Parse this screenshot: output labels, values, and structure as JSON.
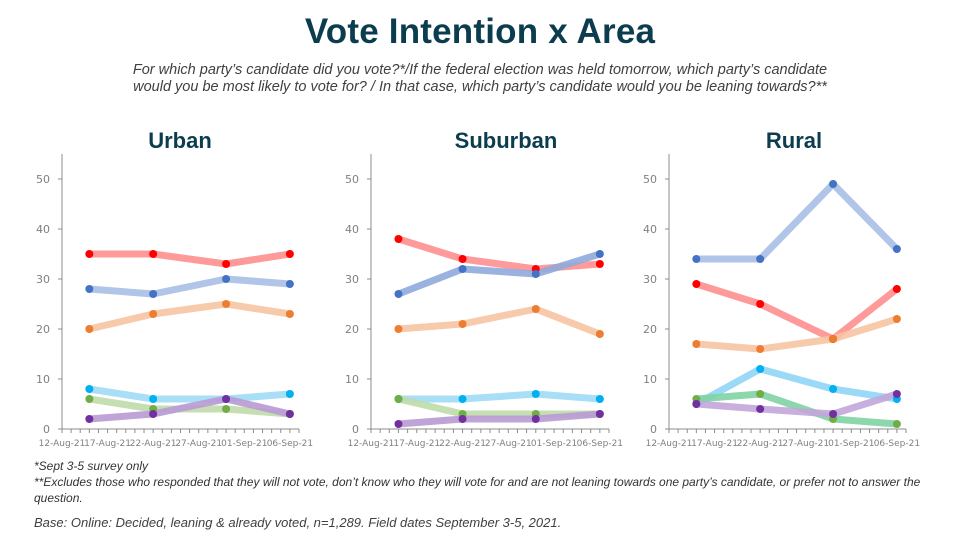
{
  "title": "Vote Intention x Area",
  "subtitle_line1": "For which party’s candidate did you vote?*/If the federal election was held tomorrow, which party’s candidate",
  "subtitle_line2": "would you be most likely to vote for? / In that case, which party’s candidate would you be leaning towards?**",
  "footnotes": {
    "note1": "*Sept 3-5 survey only",
    "note2": "**Excludes those who responded that they will not vote, don’t know who they will vote for and are not leaning towards one party’s candidate, or prefer not to answer the question.",
    "base": "Base: Online: Decided, leaning & already voted, n=1,289. Field dates September 3-5, 2021."
  },
  "chart_data": [
    {
      "type": "line",
      "title": "Urban",
      "x": [
        "15-Aug-21",
        "22-Aug-21",
        "30-Aug-21",
        "06-Sep-21"
      ],
      "x_ticks": [
        "12-Aug-21",
        "17-Aug-21",
        "22-Aug-21",
        "27-Aug-21",
        "01-Sep-21",
        "06-Sep-21"
      ],
      "y_ticks": [
        0,
        10,
        20,
        30,
        40,
        50
      ],
      "ylim": [
        0,
        55
      ],
      "xlabel": "",
      "ylabel": "",
      "series": [
        {
          "name": "red",
          "color": "#ff0000",
          "line_color": "#ff8f8f",
          "values": [
            35,
            35,
            33,
            35
          ]
        },
        {
          "name": "blue",
          "color": "#4472c4",
          "line_color": "#a9bfe6",
          "values": [
            28,
            27,
            30,
            29
          ]
        },
        {
          "name": "orange",
          "color": "#ed7d31",
          "line_color": "#f7c4a3",
          "values": [
            20,
            23,
            25,
            23
          ]
        },
        {
          "name": "cyan",
          "color": "#00b0f0",
          "line_color": "#9fdcf6",
          "values": [
            8,
            6,
            6,
            7
          ]
        },
        {
          "name": "green",
          "color": "#70ad47",
          "line_color": "#bfdcab",
          "values": [
            6,
            4,
            4,
            3
          ]
        },
        {
          "name": "purple",
          "color": "#7030a0",
          "line_color": "#b99ad4",
          "values": [
            2,
            3,
            6,
            3
          ]
        }
      ]
    },
    {
      "type": "line",
      "title": "Suburban",
      "x": [
        "15-Aug-21",
        "22-Aug-21",
        "30-Aug-21",
        "06-Sep-21"
      ],
      "x_ticks": [
        "12-Aug-21",
        "17-Aug-21",
        "22-Aug-21",
        "27-Aug-21",
        "01-Sep-21",
        "06-Sep-21"
      ],
      "y_ticks": [
        0,
        10,
        20,
        30,
        40,
        50
      ],
      "ylim": [
        0,
        55
      ],
      "xlabel": "",
      "ylabel": "",
      "series": [
        {
          "name": "red",
          "color": "#ff0000",
          "line_color": "#ff8f8f",
          "values": [
            38,
            34,
            32,
            33
          ]
        },
        {
          "name": "blue",
          "color": "#4472c4",
          "line_color": "#8eaadc",
          "values": [
            27,
            32,
            31,
            35
          ]
        },
        {
          "name": "orange",
          "color": "#ed7d31",
          "line_color": "#f7c4a3",
          "values": [
            20,
            21,
            24,
            19
          ]
        },
        {
          "name": "cyan",
          "color": "#00b0f0",
          "line_color": "#9fdcf6",
          "values": [
            6,
            6,
            7,
            6
          ]
        },
        {
          "name": "green",
          "color": "#70ad47",
          "line_color": "#bfdcab",
          "values": [
            6,
            3,
            3,
            3
          ]
        },
        {
          "name": "purple",
          "color": "#7030a0",
          "line_color": "#b99ad4",
          "values": [
            1,
            2,
            2,
            3
          ]
        }
      ]
    },
    {
      "type": "line",
      "title": "Rural",
      "x": [
        "15-Aug-21",
        "22-Aug-21",
        "30-Aug-21",
        "06-Sep-21"
      ],
      "x_ticks": [
        "12-Aug-21",
        "17-Aug-21",
        "22-Aug-21",
        "27-Aug-21",
        "01-Sep-21",
        "06-Sep-21"
      ],
      "y_ticks": [
        0,
        10,
        20,
        30,
        40,
        50
      ],
      "ylim": [
        0,
        55
      ],
      "xlabel": "",
      "ylabel": "",
      "series": [
        {
          "name": "blue",
          "color": "#4472c4",
          "line_color": "#a9bfe6",
          "values": [
            34,
            34,
            49,
            36
          ]
        },
        {
          "name": "red",
          "color": "#ff0000",
          "line_color": "#ff8f8f",
          "values": [
            29,
            25,
            18,
            28
          ]
        },
        {
          "name": "orange",
          "color": "#ed7d31",
          "line_color": "#f7c4a3",
          "values": [
            17,
            16,
            18,
            22
          ]
        },
        {
          "name": "cyan",
          "color": "#00b0f0",
          "line_color": "#8fd6f6",
          "values": [
            5,
            12,
            8,
            6
          ]
        },
        {
          "name": "green",
          "color": "#70ad47",
          "line_color": "#7fd3a2",
          "values": [
            6,
            7,
            2,
            1
          ]
        },
        {
          "name": "purple",
          "color": "#7030a0",
          "line_color": "#c2a6da",
          "values": [
            5,
            4,
            3,
            7
          ]
        }
      ]
    }
  ]
}
